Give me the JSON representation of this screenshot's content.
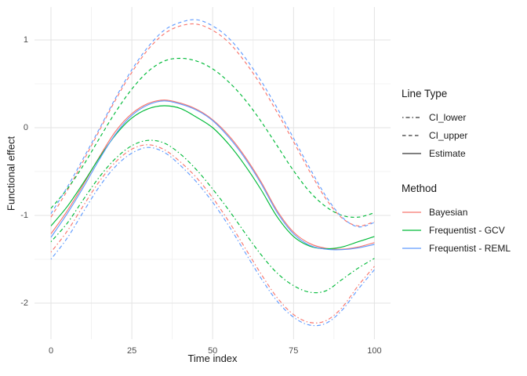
{
  "chart_data": {
    "type": "line",
    "title": "",
    "xlabel": "Time index",
    "ylabel": "Functional effect",
    "xlim": [
      0,
      100
    ],
    "ylim": [
      -2.25,
      1.23
    ],
    "grid": "on",
    "legend_position": "right",
    "x_ticks": [
      0,
      25,
      50,
      75,
      100
    ],
    "x_minor": [
      12.5,
      37.5,
      62.5,
      87.5
    ],
    "y_ticks": [
      1,
      0,
      -1,
      -2
    ],
    "y_minor": [
      0.5,
      -0.5,
      -1.5
    ],
    "x": [
      0,
      5,
      10,
      15,
      20,
      25,
      30,
      35,
      40,
      45,
      50,
      55,
      60,
      65,
      70,
      75,
      80,
      85,
      90,
      95,
      100
    ],
    "line_styles": {
      "CI_lower": "1.5,3,5,3",
      "CI_upper": "4.5,3.5",
      "Estimate": ""
    },
    "method_colors": {
      "Bayesian": "#F8766D",
      "Frequentist - GCV": "#00BA38",
      "Frequentist - REML": "#619CFF"
    },
    "series": [
      {
        "name": "Bayesian CI_lower",
        "method": "Bayesian",
        "line_type": "CI_lower",
        "color": "#F8766D",
        "values": [
          -1.42,
          -1.18,
          -0.89,
          -0.61,
          -0.39,
          -0.245,
          -0.195,
          -0.25,
          -0.39,
          -0.57,
          -0.8,
          -1.07,
          -1.37,
          -1.67,
          -1.94,
          -2.13,
          -2.22,
          -2.2,
          -2.05,
          -1.8,
          -1.58
        ]
      },
      {
        "name": "Bayesian CI_upper",
        "method": "Bayesian",
        "line_type": "CI_upper",
        "color": "#F8766D",
        "values": [
          -1.02,
          -0.72,
          -0.38,
          -0.03,
          0.32,
          0.63,
          0.89,
          1.07,
          1.16,
          1.18,
          1.11,
          0.97,
          0.75,
          0.48,
          0.17,
          -0.16,
          -0.5,
          -0.81,
          -1.03,
          -1.12,
          -1.07
        ]
      },
      {
        "name": "Bayesian Estimate",
        "method": "Bayesian",
        "line_type": "Estimate",
        "color": "#F8766D",
        "values": [
          -1.21,
          -0.95,
          -0.65,
          -0.33,
          -0.04,
          0.16,
          0.275,
          0.315,
          0.28,
          0.21,
          0.09,
          -0.09,
          -0.33,
          -0.62,
          -0.95,
          -1.19,
          -1.32,
          -1.375,
          -1.385,
          -1.36,
          -1.31
        ]
      },
      {
        "name": "Frequentist - GCV CI_lower",
        "method": "Frequentist - GCV",
        "line_type": "CI_lower",
        "color": "#00BA38",
        "values": [
          -1.3,
          -1.09,
          -0.82,
          -0.56,
          -0.35,
          -0.205,
          -0.145,
          -0.175,
          -0.3,
          -0.48,
          -0.7,
          -0.94,
          -1.2,
          -1.45,
          -1.66,
          -1.8,
          -1.875,
          -1.86,
          -1.73,
          -1.6,
          -1.49
        ]
      },
      {
        "name": "Frequentist - GCV CI_upper",
        "method": "Frequentist - GCV",
        "line_type": "CI_upper",
        "color": "#00BA38",
        "values": [
          -0.92,
          -0.7,
          -0.43,
          -0.12,
          0.18,
          0.44,
          0.64,
          0.76,
          0.79,
          0.76,
          0.67,
          0.52,
          0.32,
          0.07,
          -0.21,
          -0.49,
          -0.73,
          -0.9,
          -1.0,
          -1.02,
          -0.97
        ]
      },
      {
        "name": "Frequentist - GCV Estimate",
        "method": "Frequentist - GCV",
        "line_type": "Estimate",
        "color": "#00BA38",
        "values": [
          -1.12,
          -0.9,
          -0.63,
          -0.34,
          -0.08,
          0.11,
          0.215,
          0.25,
          0.22,
          0.12,
          0.0,
          -0.19,
          -0.43,
          -0.71,
          -1.02,
          -1.24,
          -1.35,
          -1.38,
          -1.36,
          -1.3,
          -1.24
        ]
      },
      {
        "name": "Frequentist - REML CI_lower",
        "method": "Frequentist - REML",
        "line_type": "CI_lower",
        "color": "#619CFF",
        "values": [
          -1.5,
          -1.26,
          -0.96,
          -0.67,
          -0.44,
          -0.29,
          -0.225,
          -0.28,
          -0.43,
          -0.62,
          -0.85,
          -1.12,
          -1.42,
          -1.72,
          -1.98,
          -2.16,
          -2.25,
          -2.23,
          -2.08,
          -1.84,
          -1.62
        ]
      },
      {
        "name": "Frequentist - REML CI_upper",
        "method": "Frequentist - REML",
        "line_type": "CI_upper",
        "color": "#619CFF",
        "values": [
          -0.98,
          -0.68,
          -0.35,
          -0.01,
          0.34,
          0.66,
          0.92,
          1.11,
          1.2,
          1.23,
          1.16,
          1.02,
          0.8,
          0.53,
          0.22,
          -0.12,
          -0.46,
          -0.78,
          -1.02,
          -1.13,
          -1.08
        ]
      },
      {
        "name": "Frequentist - REML Estimate",
        "method": "Frequentist - REML",
        "line_type": "Estimate",
        "color": "#619CFF",
        "values": [
          -1.25,
          -0.98,
          -0.68,
          -0.36,
          -0.07,
          0.14,
          0.26,
          0.305,
          0.27,
          0.2,
          0.08,
          -0.11,
          -0.35,
          -0.64,
          -0.97,
          -1.21,
          -1.34,
          -1.385,
          -1.39,
          -1.37,
          -1.33
        ]
      }
    ],
    "legend": {
      "line_type": {
        "title": "Line Type",
        "items": [
          {
            "label": "CI_lower",
            "pattern": "CI_lower"
          },
          {
            "label": "CI_upper",
            "pattern": "CI_upper"
          },
          {
            "label": "Estimate",
            "pattern": "Estimate"
          }
        ]
      },
      "method": {
        "title": "Method",
        "items": [
          {
            "label": "Bayesian",
            "color": "#F8766D"
          },
          {
            "label": "Frequentist - GCV",
            "color": "#00BA38"
          },
          {
            "label": "Frequentist - REML",
            "color": "#619CFF"
          }
        ]
      }
    },
    "colors": {
      "grid_major": "#E3E3E3",
      "grid_minor": "#EFEFEF",
      "tick_text": "#4D4D4D",
      "title_text": "#1A1A1A"
    }
  }
}
